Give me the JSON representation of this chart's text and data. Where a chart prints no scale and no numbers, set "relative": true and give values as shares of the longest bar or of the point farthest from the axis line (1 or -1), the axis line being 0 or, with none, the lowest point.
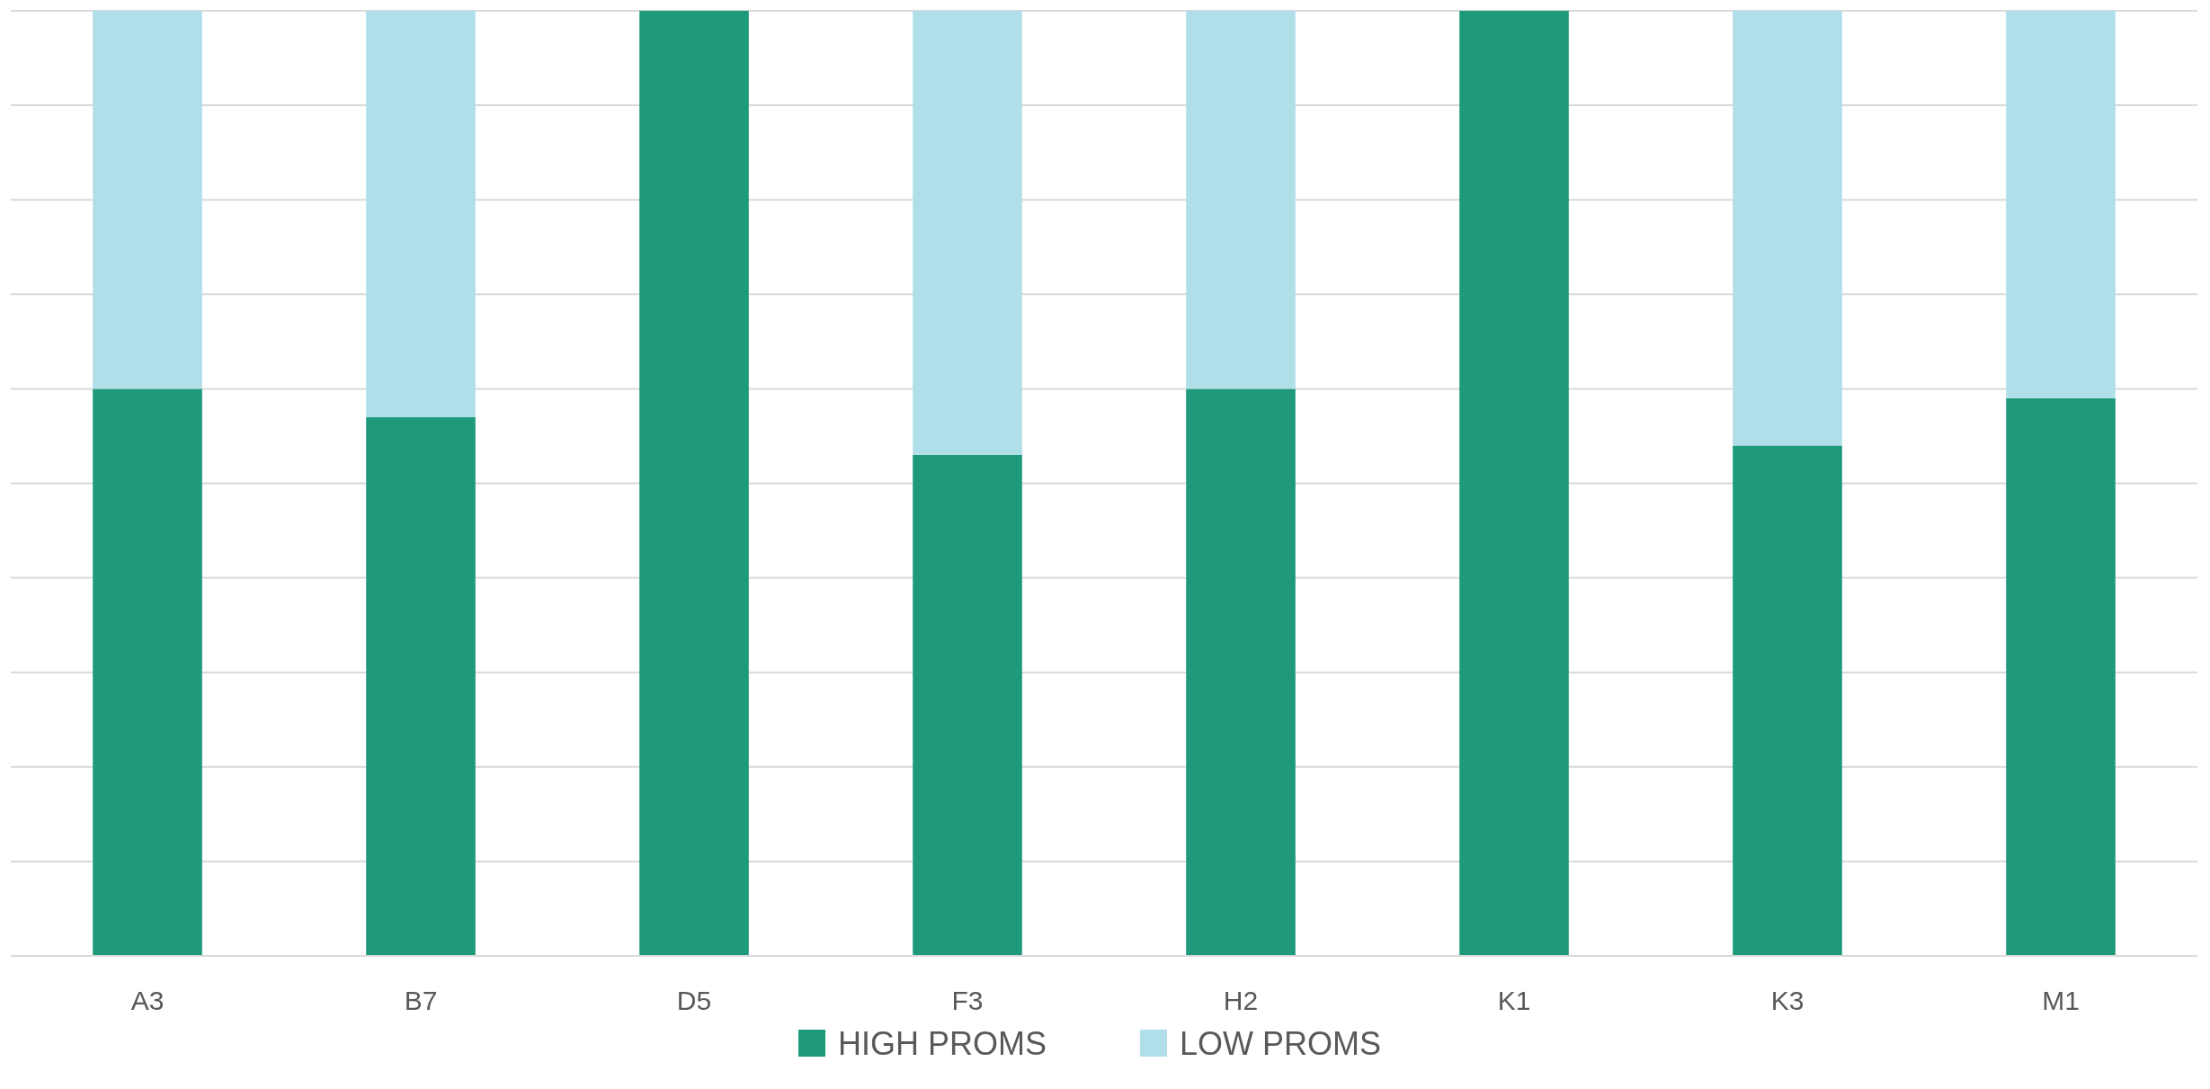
{
  "chart_data": {
    "type": "bar",
    "stacked": true,
    "relative": true,
    "grid": "y",
    "legend": "bottom",
    "categories": [
      "A3",
      "B7",
      "D5",
      "F3",
      "H2",
      "K1",
      "K3",
      "M1"
    ],
    "series": [
      {
        "name": "HIGH PROMS",
        "color": "#1e9a7a",
        "values": [
          0.6,
          0.57,
          1,
          0.53,
          0.6,
          1,
          0.54,
          0.59
        ]
      },
      {
        "name": "LOW PROMS",
        "color": "#b0dfea",
        "values": [
          0.4,
          0.43,
          0,
          0.47,
          0.4,
          0,
          0.46,
          0.41
        ]
      }
    ]
  }
}
